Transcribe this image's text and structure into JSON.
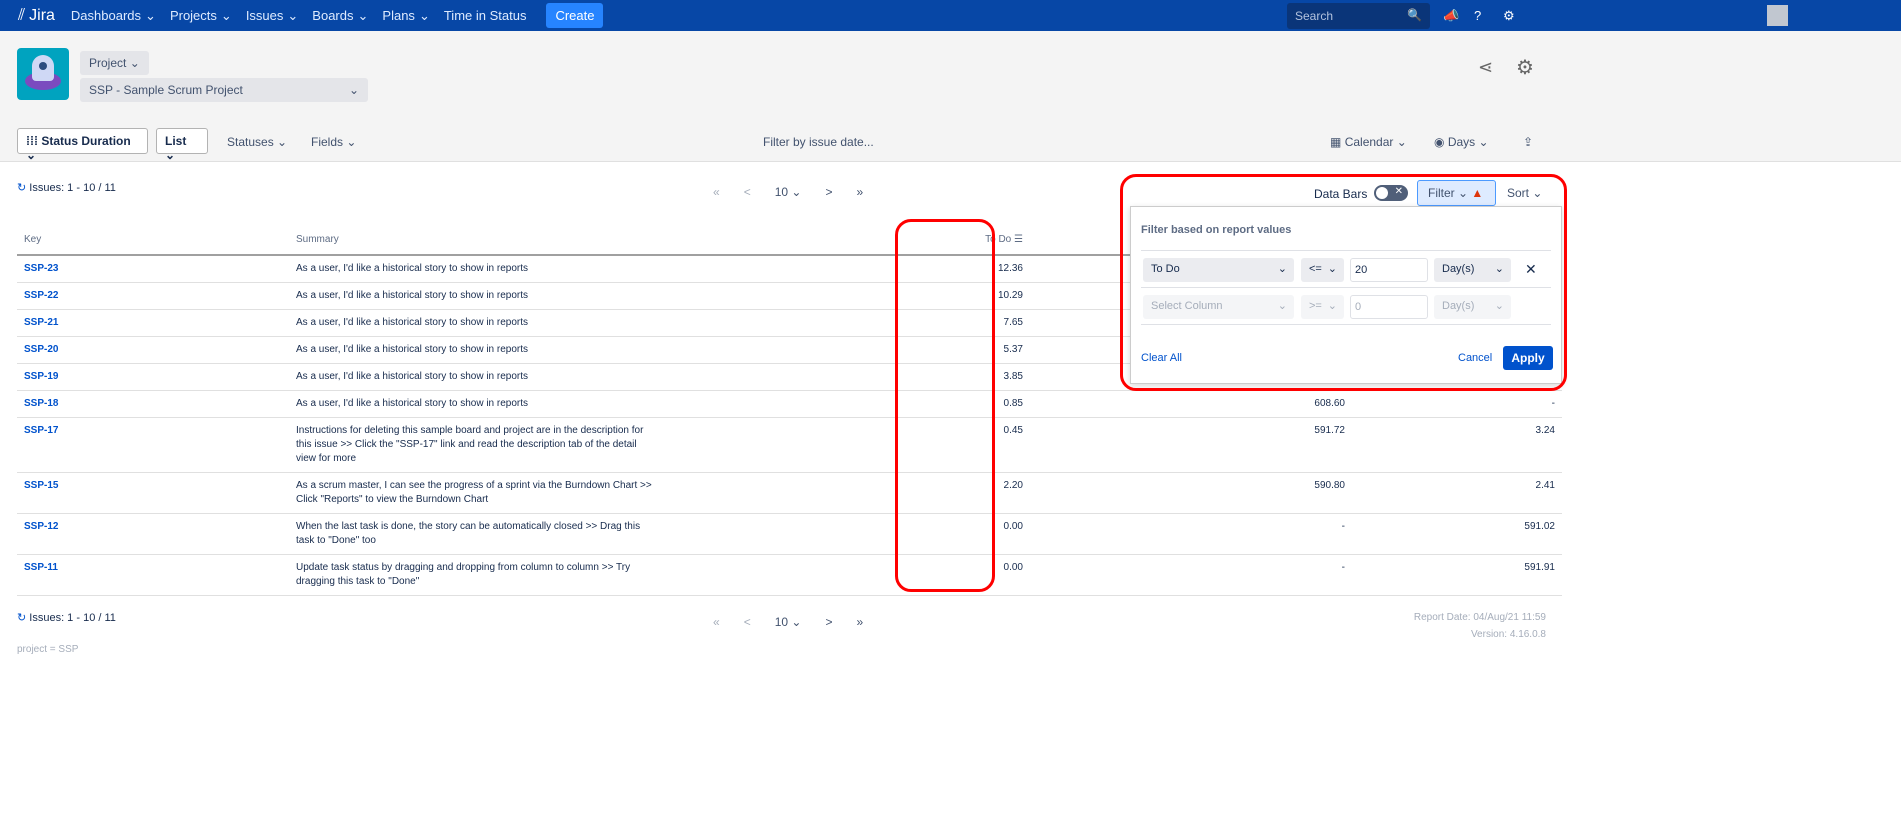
{
  "nav": {
    "logo": "Jira",
    "items": [
      "Dashboards",
      "Projects",
      "Issues",
      "Boards",
      "Plans"
    ],
    "time_in_status": "Time in Status",
    "create": "Create",
    "search_placeholder": "Search"
  },
  "header": {
    "project_selector": "Project",
    "project_name": "SSP - Sample Scrum Project"
  },
  "toolbar": {
    "status_duration": "Status Duration",
    "list": "List",
    "statuses": "Statuses",
    "fields": "Fields",
    "filter_by_date": "Filter by issue date...",
    "calendar": "Calendar",
    "days": "Days"
  },
  "pagination": {
    "issues": "Issues: 1 - 10 / 11",
    "page_size": "10",
    "first": "«",
    "prev": "<",
    "next": ">",
    "last": "»"
  },
  "controls": {
    "data_bars": "Data Bars",
    "filter": "Filter",
    "sort": "Sort"
  },
  "table": {
    "headers": [
      "Key",
      "Summary",
      "To Do"
    ],
    "rows": [
      {
        "key": "SSP-23",
        "summary": "As a user, I'd like a historical story to show in reports",
        "todo": "12.36",
        "c4": "",
        "c5": ""
      },
      {
        "key": "SSP-22",
        "summary": "As a user, I'd like a historical story to show in reports",
        "todo": "10.29",
        "c4": "",
        "c5": ""
      },
      {
        "key": "SSP-21",
        "summary": "As a user, I'd like a historical story to show in reports",
        "todo": "7.65",
        "c4": "",
        "c5": ""
      },
      {
        "key": "SSP-20",
        "summary": "As a user, I'd like a historical story to show in reports",
        "todo": "5.37",
        "c4": "",
        "c5": ""
      },
      {
        "key": "SSP-19",
        "summary": "As a user, I'd like a historical story to show in reports",
        "todo": "3.85",
        "c4": "",
        "c5": ""
      },
      {
        "key": "SSP-18",
        "summary": "As a user, I'd like a historical story to show in reports",
        "todo": "0.85",
        "c4": "608.60",
        "c5": "-"
      },
      {
        "key": "SSP-17",
        "summary": "Instructions for deleting this sample board and project are in the description for this issue >> Click the \"SSP-17\" link and read the description tab of the detail view for more",
        "todo": "0.45",
        "c4": "591.72",
        "c5": "3.24"
      },
      {
        "key": "SSP-15",
        "summary": "As a scrum master, I can see the progress of a sprint via the Burndown Chart >> Click \"Reports\" to view the Burndown Chart",
        "todo": "2.20",
        "c4": "590.80",
        "c5": "2.41"
      },
      {
        "key": "SSP-12",
        "summary": "When the last task is done, the story can be automatically closed >> Drag this task to \"Done\" too",
        "todo": "0.00",
        "c4": "-",
        "c5": "591.02"
      },
      {
        "key": "SSP-11",
        "summary": "Update task status by dragging and dropping from column to column >> Try dragging this task to \"Done\"",
        "todo": "0.00",
        "c4": "-",
        "c5": "591.91"
      }
    ]
  },
  "filter_popup": {
    "title": "Filter based on report values",
    "row1": {
      "column": "To Do",
      "operator": "<=",
      "value": "20",
      "unit": "Day(s)"
    },
    "row2": {
      "column": "Select Column",
      "operator": ">=",
      "value_placeholder": "0",
      "unit": "Day(s)"
    },
    "clear_all": "Clear All",
    "cancel": "Cancel",
    "apply": "Apply"
  },
  "footer": {
    "report_date": "Report Date: 04/Aug/21 11:59",
    "version": "Version: 4.16.0.8",
    "jql": "project = SSP"
  },
  "colors": {
    "nav": "#0747a6",
    "link": "#0052cc",
    "apply": "#0052cc",
    "highlight": "#ff0000"
  }
}
